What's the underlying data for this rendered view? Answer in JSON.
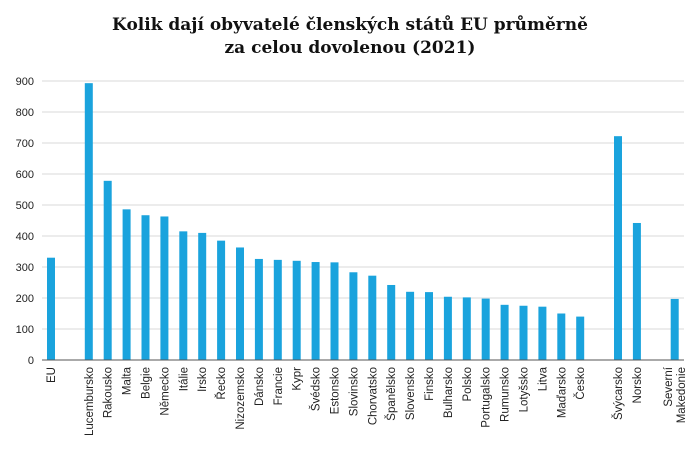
{
  "chart_data": {
    "type": "bar",
    "title_lines": [
      "Kolik dají obyvatelé členských států EU průměrně",
      "za celou dovolenou (2021)"
    ],
    "xlabel": "",
    "ylabel": "",
    "ylim": [
      0,
      900
    ],
    "yticks": [
      0,
      100,
      200,
      300,
      400,
      500,
      600,
      700,
      800,
      900
    ],
    "grid": true,
    "bar_color": "#1aa3dd",
    "highlight_color": "#e0001b",
    "categories": [
      {
        "label": "EU",
        "value": 330,
        "slot": 0
      },
      {
        "label": "Lucembursko",
        "value": 893,
        "slot": 2
      },
      {
        "label": "Rakousko",
        "value": 578,
        "slot": 3
      },
      {
        "label": "Malta",
        "value": 486,
        "slot": 4
      },
      {
        "label": "Belgie",
        "value": 467,
        "slot": 5
      },
      {
        "label": "Německo",
        "value": 463,
        "slot": 6
      },
      {
        "label": "Itálie",
        "value": 415,
        "slot": 7
      },
      {
        "label": "Irsko",
        "value": 410,
        "slot": 8
      },
      {
        "label": "Řecko",
        "value": 385,
        "slot": 9
      },
      {
        "label": "Nizozemsko",
        "value": 363,
        "slot": 10
      },
      {
        "label": "Dánsko",
        "value": 326,
        "slot": 11
      },
      {
        "label": "Francie",
        "value": 323,
        "slot": 12
      },
      {
        "label": "Kypr",
        "value": 320,
        "slot": 13
      },
      {
        "label": "Švédsko",
        "value": 316,
        "slot": 14
      },
      {
        "label": "Estonsko",
        "value": 315,
        "slot": 15
      },
      {
        "label": "Slovinsko",
        "value": 283,
        "slot": 16
      },
      {
        "label": "Chorvatsko",
        "value": 272,
        "slot": 17
      },
      {
        "label": "Španělsko",
        "value": 242,
        "slot": 18
      },
      {
        "label": "Slovensko",
        "value": 220,
        "slot": 19
      },
      {
        "label": "Finsko",
        "value": 219,
        "slot": 20
      },
      {
        "label": "Bulharsko",
        "value": 204,
        "slot": 21
      },
      {
        "label": "Polsko",
        "value": 202,
        "slot": 22
      },
      {
        "label": "Portugalsko",
        "value": 198,
        "slot": 23
      },
      {
        "label": "Rumunsko",
        "value": 178,
        "slot": 24
      },
      {
        "label": "Lotyšsko",
        "value": 175,
        "slot": 25
      },
      {
        "label": "Litva",
        "value": 172,
        "slot": 26
      },
      {
        "label": "Maďarsko",
        "value": 150,
        "slot": 27
      },
      {
        "label": "Česko",
        "value": 140,
        "slot": 28,
        "highlight": true
      },
      {
        "label": "Švýcarsko",
        "value": 722,
        "slot": 30
      },
      {
        "label": "Norsko",
        "value": 442,
        "slot": 31
      },
      {
        "label": "Severní Makedonie",
        "label_lines": [
          "Severní",
          "Makedonie"
        ],
        "value": 197,
        "slot": 33
      }
    ]
  }
}
